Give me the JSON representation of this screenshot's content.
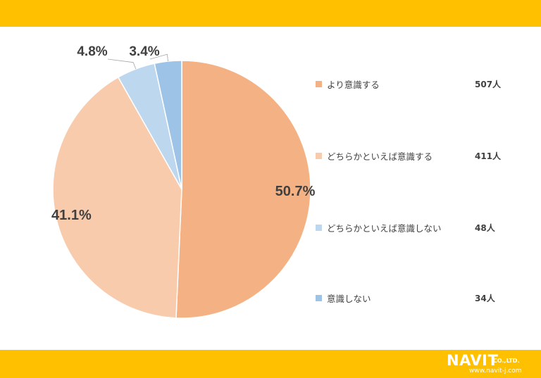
{
  "chart_data": {
    "type": "pie",
    "title": "",
    "categories": [
      "より意識する",
      "どちらかといえば意識する",
      "どちらかといえば意識しない",
      "意識しない"
    ],
    "values": [
      50.7,
      41.1,
      4.8,
      3.4
    ],
    "value_labels": [
      "50.7%",
      "41.1%",
      "4.8%",
      "3.4%"
    ],
    "counts": [
      "507人",
      "411人",
      "48人",
      "34人"
    ],
    "colors": [
      "#F4B183",
      "#F8CBAD",
      "#BDD7EE",
      "#9DC3E6"
    ],
    "legend_placement": "right",
    "start_angle": "top",
    "direction": "clockwise"
  },
  "footer": {
    "logo_text": "NAVIT",
    "logo_suffix": "CO.,LTD.",
    "logo_url": "www.navit-j.com"
  },
  "theme": {
    "band_color": "#FFC000",
    "text_color": "#404040"
  }
}
